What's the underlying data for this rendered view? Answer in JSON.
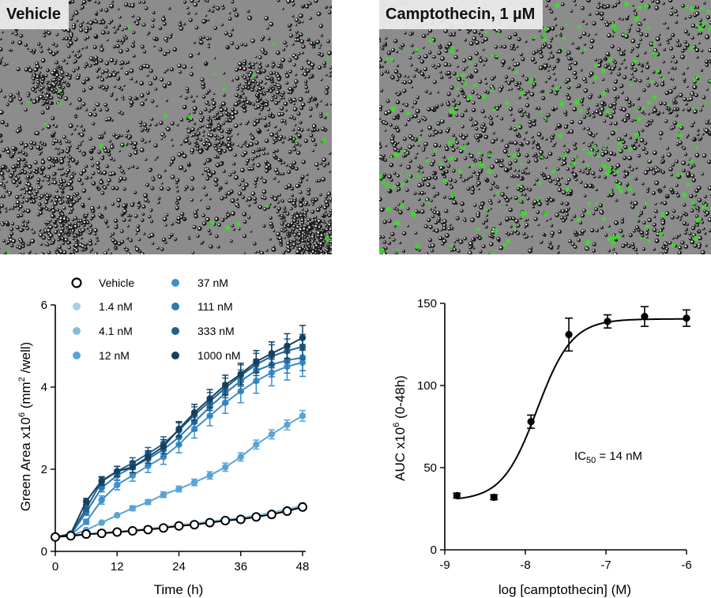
{
  "panels": {
    "left_image": {
      "label": "Vehicle"
    },
    "right_image": {
      "label": "Camptothecin, 1 µM"
    }
  },
  "colors": {
    "vehicle": "#000000",
    "1.4 nM": "#a9cfe9",
    "4.1 nM": "#86bde0",
    "12 nM": "#5aa3d6",
    "37 nM": "#3d8fcc",
    "111 nM": "#2a79b5",
    "333 nM": "#1f5f8f",
    "1000 nM": "#17405f",
    "micro_bg": "#8c8c8c",
    "green_fluor": "#3ddc2e"
  },
  "chart_data": [
    {
      "type": "line",
      "xlabel": "Time (h)",
      "ylabel": "Green Area x10",
      "ylabel_sup": "6",
      "ylabel_unit": " (mm",
      "ylabel_unit_sup": "2",
      "ylabel_end": " /well)",
      "xlim": [
        0,
        48
      ],
      "ylim": [
        0,
        6
      ],
      "xticks": [
        0,
        12,
        24,
        36,
        48
      ],
      "yticks": [
        0,
        2,
        4,
        6
      ],
      "legend_position": "top-left",
      "x": [
        0,
        3,
        6,
        9,
        12,
        15,
        18,
        21,
        24,
        27,
        30,
        33,
        36,
        39,
        42,
        45,
        48
      ],
      "series": [
        {
          "name": "Vehicle",
          "style": "open",
          "values": [
            0.35,
            0.38,
            0.42,
            0.44,
            0.47,
            0.5,
            0.53,
            0.57,
            0.62,
            0.65,
            0.7,
            0.75,
            0.78,
            0.84,
            0.9,
            0.98,
            1.08
          ],
          "err": [
            0.03,
            0.03,
            0.03,
            0.03,
            0.03,
            0.03,
            0.03,
            0.03,
            0.04,
            0.04,
            0.04,
            0.04,
            0.04,
            0.05,
            0.05,
            0.05,
            0.06
          ]
        },
        {
          "name": "1.4 nM",
          "values": [
            0.35,
            0.38,
            0.42,
            0.45,
            0.48,
            0.52,
            0.56,
            0.6,
            0.65,
            0.69,
            0.73,
            0.78,
            0.82,
            0.88,
            0.95,
            1.03,
            1.13
          ],
          "err": [
            0.03,
            0.03,
            0.03,
            0.03,
            0.03,
            0.03,
            0.03,
            0.03,
            0.04,
            0.04,
            0.04,
            0.04,
            0.04,
            0.05,
            0.05,
            0.05,
            0.06
          ]
        },
        {
          "name": "4.1 nM",
          "values": [
            0.35,
            0.37,
            0.41,
            0.44,
            0.47,
            0.5,
            0.54,
            0.58,
            0.63,
            0.67,
            0.72,
            0.77,
            0.81,
            0.87,
            0.93,
            1.01,
            1.1
          ],
          "err": [
            0.03,
            0.03,
            0.03,
            0.03,
            0.03,
            0.03,
            0.03,
            0.03,
            0.04,
            0.04,
            0.04,
            0.04,
            0.04,
            0.05,
            0.05,
            0.05,
            0.06
          ]
        },
        {
          "name": "12 nM",
          "values": [
            0.35,
            0.38,
            0.52,
            0.7,
            0.88,
            1.05,
            1.2,
            1.38,
            1.52,
            1.68,
            1.85,
            2.05,
            2.3,
            2.6,
            2.85,
            3.08,
            3.3
          ],
          "err": [
            0.03,
            0.03,
            0.04,
            0.05,
            0.05,
            0.06,
            0.06,
            0.07,
            0.07,
            0.08,
            0.09,
            0.1,
            0.1,
            0.11,
            0.11,
            0.12,
            0.13
          ]
        },
        {
          "name": "37 nM",
          "values": [
            0.35,
            0.4,
            0.72,
            1.25,
            1.62,
            1.85,
            2.08,
            2.3,
            2.6,
            2.98,
            3.3,
            3.62,
            3.9,
            4.15,
            4.35,
            4.5,
            4.6
          ],
          "err": [
            0.03,
            0.04,
            0.06,
            0.1,
            0.12,
            0.14,
            0.16,
            0.18,
            0.2,
            0.22,
            0.24,
            0.26,
            0.28,
            0.3,
            0.32,
            0.33,
            0.34
          ]
        },
        {
          "name": "111 nM",
          "values": [
            0.35,
            0.41,
            0.95,
            1.55,
            1.85,
            2.05,
            2.25,
            2.48,
            2.78,
            3.15,
            3.52,
            3.85,
            4.15,
            4.4,
            4.55,
            4.65,
            4.72
          ],
          "err": [
            0.03,
            0.04,
            0.07,
            0.1,
            0.12,
            0.14,
            0.15,
            0.17,
            0.19,
            0.21,
            0.23,
            0.25,
            0.27,
            0.28,
            0.3,
            0.31,
            0.32
          ]
        },
        {
          "name": "333 nM",
          "values": [
            0.35,
            0.42,
            1.05,
            1.7,
            1.95,
            2.15,
            2.38,
            2.62,
            2.95,
            3.32,
            3.65,
            3.98,
            4.28,
            4.55,
            4.75,
            4.88,
            4.98
          ],
          "err": [
            0.03,
            0.04,
            0.07,
            0.1,
            0.12,
            0.13,
            0.15,
            0.17,
            0.18,
            0.2,
            0.22,
            0.24,
            0.26,
            0.27,
            0.28,
            0.29,
            0.3
          ]
        },
        {
          "name": "1000 nM",
          "values": [
            0.35,
            0.43,
            1.22,
            1.72,
            1.95,
            2.05,
            2.3,
            2.55,
            2.98,
            3.38,
            3.72,
            4.05,
            4.32,
            4.62,
            4.82,
            5.0,
            5.2
          ],
          "err": [
            0.03,
            0.04,
            0.07,
            0.1,
            0.12,
            0.13,
            0.15,
            0.17,
            0.18,
            0.2,
            0.22,
            0.24,
            0.26,
            0.27,
            0.28,
            0.3,
            0.3
          ]
        }
      ]
    },
    {
      "type": "scatter",
      "xlabel": "log [camptothecin] (M)",
      "ylabel": "AUC x10",
      "ylabel_sup": "6",
      "ylabel_end": " (0-48h)",
      "xlim": [
        -9,
        -6
      ],
      "ylim": [
        0,
        150
      ],
      "xticks": [
        -9,
        -8,
        -7,
        -6
      ],
      "yticks": [
        0,
        50,
        100,
        150
      ],
      "xtick_labels": [
        "-9",
        "-8",
        "-7",
        "-6"
      ],
      "points_x": [
        -8.85,
        -8.39,
        -7.93,
        -7.46,
        -6.98,
        -6.52,
        -6.0
      ],
      "points_y": [
        33,
        32,
        78,
        131,
        139,
        142,
        141
      ],
      "errors": [
        1.5,
        1.5,
        4,
        10,
        4,
        6,
        5
      ],
      "fit": {
        "bottom": 30,
        "top": 140.5,
        "log_ic50": -7.855,
        "hill": 2.0
      },
      "annotation_prefix": "IC",
      "annotation_sub": "50",
      "annotation_suffix": " = 14 nM"
    }
  ]
}
